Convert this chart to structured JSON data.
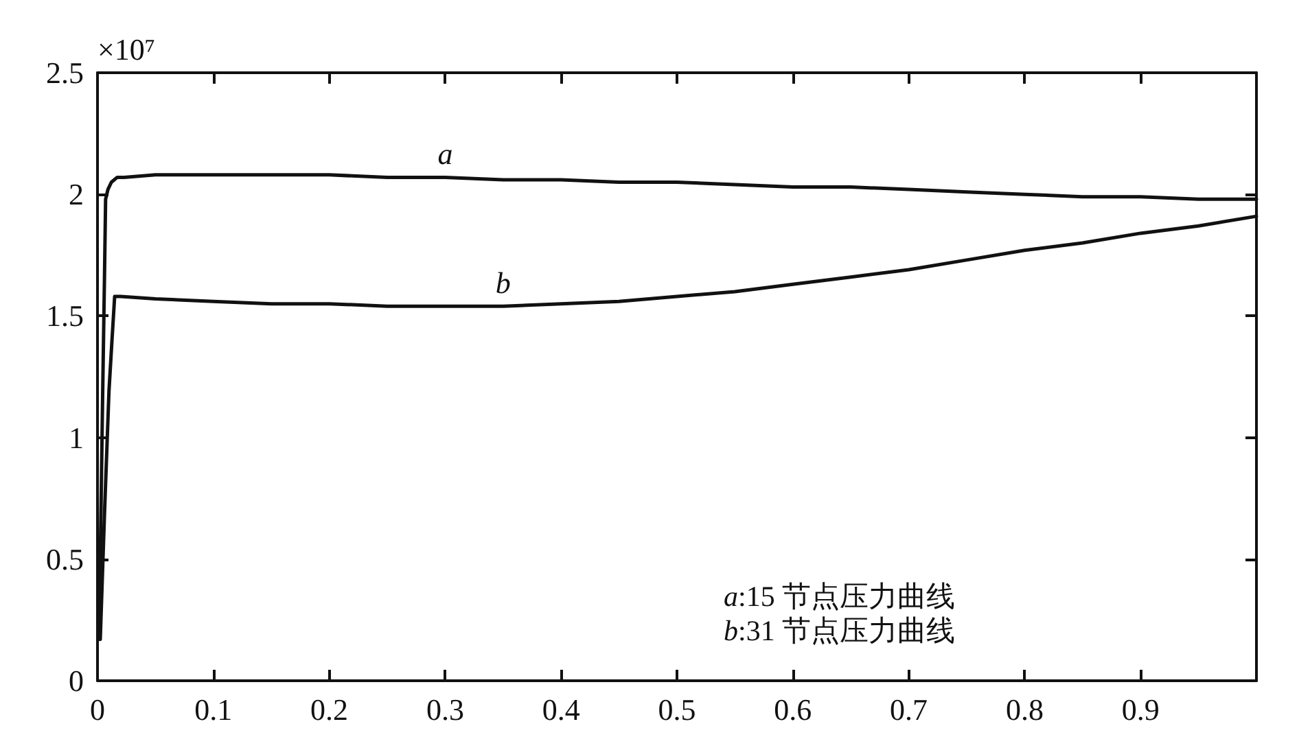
{
  "chart_data": {
    "type": "line",
    "ylabel": "×10⁷",
    "xlim": [
      0,
      1
    ],
    "xticks": [
      0,
      0.1,
      0.2,
      0.3,
      0.4,
      0.5,
      0.6,
      0.7,
      0.8,
      0.9
    ],
    "ylim": [
      0,
      2.5
    ],
    "yticks": [
      0,
      0.5,
      1,
      1.5,
      2,
      2.5
    ],
    "grid": false,
    "legend": false,
    "series": [
      {
        "name": "a",
        "color": "#111111",
        "x": [
          0.0015,
          0.003,
          0.0045,
          0.006,
          0.007,
          0.009,
          0.012,
          0.017,
          0.023,
          0.05,
          0.1,
          0.15,
          0.2,
          0.25,
          0.3,
          0.35,
          0.4,
          0.45,
          0.5,
          0.55,
          0.6,
          0.65,
          0.7,
          0.75,
          0.8,
          0.85,
          0.9,
          0.95,
          1.0
        ],
        "values": [
          0.17,
          0.7,
          1.19,
          1.65,
          1.98,
          2.02,
          2.05,
          2.07,
          2.07,
          2.08,
          2.08,
          2.08,
          2.08,
          2.07,
          2.07,
          2.06,
          2.06,
          2.05,
          2.05,
          2.04,
          2.03,
          2.03,
          2.02,
          2.01,
          2.0,
          1.99,
          1.99,
          1.98,
          1.98
        ]
      },
      {
        "name": "b",
        "color": "#111111",
        "x": [
          0.0024,
          0.006,
          0.0099,
          0.0125,
          0.0148,
          0.02,
          0.05,
          0.1,
          0.15,
          0.2,
          0.25,
          0.3,
          0.35,
          0.4,
          0.45,
          0.5,
          0.55,
          0.6,
          0.65,
          0.7,
          0.75,
          0.8,
          0.85,
          0.9,
          0.95,
          1.0
        ],
        "values": [
          0.17,
          0.68,
          1.19,
          1.4,
          1.58,
          1.58,
          1.57,
          1.56,
          1.55,
          1.55,
          1.54,
          1.54,
          1.54,
          1.55,
          1.56,
          1.58,
          1.6,
          1.63,
          1.66,
          1.69,
          1.73,
          1.77,
          1.8,
          1.84,
          1.87,
          1.91
        ]
      }
    ],
    "annotations": [
      "a:15 节点压力曲线",
      "b:31 节点压力曲线"
    ]
  }
}
